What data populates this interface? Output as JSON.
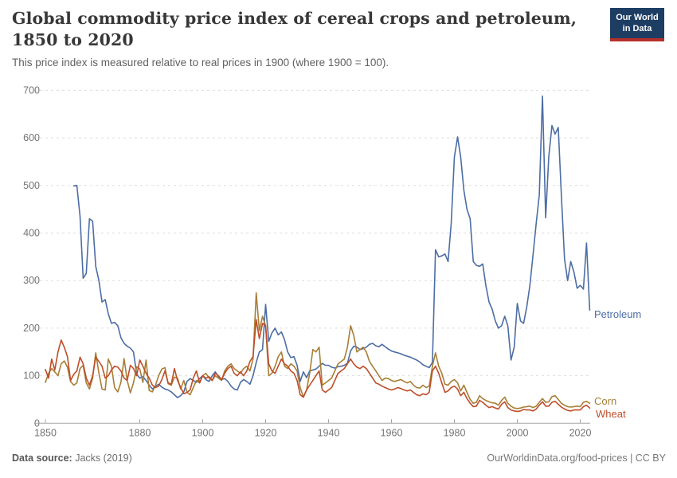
{
  "header": {
    "title": "Global commodity price index of cereal crops and petroleum, 1850 to 2020",
    "subtitle": "This price index is measured relative to real prices in 1900 (where 1900 = 100).",
    "logo": {
      "line1": "Our World",
      "line2": "in Data",
      "bg_color": "#1d3d63",
      "bar_color": "#b5302a"
    }
  },
  "chart_data": {
    "type": "line",
    "title": "Global commodity price index of cereal crops and petroleum, 1850 to 2020",
    "xlabel": "",
    "ylabel": "",
    "xlim": [
      1850,
      2023
    ],
    "ylim": [
      0,
      700
    ],
    "yticks": [
      0,
      100,
      200,
      300,
      400,
      500,
      600,
      700
    ],
    "xticks": [
      1850,
      1880,
      1900,
      1920,
      1940,
      1960,
      1980,
      2000,
      2020
    ],
    "grid": "horizontal-dashed",
    "legend_position": "right-of-line-ends",
    "x": [
      1850,
      1851,
      1852,
      1853,
      1854,
      1855,
      1856,
      1857,
      1858,
      1859,
      1860,
      1861,
      1862,
      1863,
      1864,
      1865,
      1866,
      1867,
      1868,
      1869,
      1870,
      1871,
      1872,
      1873,
      1874,
      1875,
      1876,
      1877,
      1878,
      1879,
      1880,
      1881,
      1882,
      1883,
      1884,
      1885,
      1886,
      1887,
      1888,
      1889,
      1890,
      1891,
      1892,
      1893,
      1894,
      1895,
      1896,
      1897,
      1898,
      1899,
      1900,
      1901,
      1902,
      1903,
      1904,
      1905,
      1906,
      1907,
      1908,
      1909,
      1910,
      1911,
      1912,
      1913,
      1914,
      1915,
      1916,
      1917,
      1918,
      1919,
      1920,
      1921,
      1922,
      1923,
      1924,
      1925,
      1926,
      1927,
      1928,
      1929,
      1930,
      1931,
      1932,
      1933,
      1934,
      1935,
      1936,
      1937,
      1938,
      1939,
      1940,
      1941,
      1942,
      1943,
      1944,
      1945,
      1946,
      1947,
      1948,
      1949,
      1950,
      1951,
      1952,
      1953,
      1954,
      1955,
      1956,
      1957,
      1958,
      1959,
      1960,
      1961,
      1962,
      1963,
      1964,
      1965,
      1966,
      1967,
      1968,
      1969,
      1970,
      1971,
      1972,
      1973,
      1974,
      1975,
      1976,
      1977,
      1978,
      1979,
      1980,
      1981,
      1982,
      1983,
      1984,
      1985,
      1986,
      1987,
      1988,
      1989,
      1990,
      1991,
      1992,
      1993,
      1994,
      1995,
      1996,
      1997,
      1998,
      1999,
      2000,
      2001,
      2002,
      2003,
      2004,
      2005,
      2006,
      2007,
      2008,
      2009,
      2010,
      2011,
      2012,
      2013,
      2014,
      2015,
      2016,
      2017,
      2018,
      2019,
      2020,
      2021,
      2022,
      2023
    ],
    "series": [
      {
        "name": "Petroleum",
        "color": "#4C6DA4",
        "values": [
          null,
          null,
          null,
          null,
          null,
          null,
          null,
          null,
          null,
          499,
          500,
          435,
          305,
          315,
          430,
          425,
          330,
          300,
          255,
          260,
          230,
          210,
          212,
          205,
          180,
          168,
          162,
          158,
          150,
          103,
          95,
          98,
          90,
          80,
          72,
          78,
          82,
          76,
          72,
          70,
          66,
          60,
          54,
          58,
          66,
          88,
          94,
          90,
          86,
          94,
          100,
          92,
          88,
          100,
          108,
          98,
          92,
          94,
          88,
          78,
          72,
          70,
          86,
          92,
          88,
          82,
          100,
          128,
          150,
          155,
          250,
          172,
          190,
          200,
          186,
          192,
          176,
          150,
          138,
          140,
          122,
          88,
          108,
          96,
          110,
          112,
          114,
          120,
          126,
          122,
          122,
          118,
          116,
          119,
          120,
          122,
          126,
          152,
          162,
          160,
          155,
          157,
          160,
          166,
          168,
          163,
          161,
          166,
          161,
          156,
          152,
          150,
          148,
          146,
          143,
          141,
          139,
          136,
          133,
          129,
          123,
          120,
          117,
          128,
          365,
          350,
          352,
          356,
          340,
          420,
          560,
          602,
          560,
          490,
          450,
          430,
          340,
          332,
          330,
          335,
          290,
          255,
          240,
          215,
          200,
          205,
          225,
          205,
          133,
          160,
          252,
          215,
          210,
          245,
          290,
          355,
          420,
          480,
          688,
          432,
          560,
          626,
          608,
          622,
          480,
          345,
          300,
          340,
          318,
          284,
          290,
          282,
          379,
          238
        ]
      },
      {
        "name": "Corn",
        "color": "#A87E35",
        "values": [
          86,
          105,
          115,
          108,
          100,
          125,
          131,
          118,
          88,
          80,
          85,
          115,
          122,
          85,
          72,
          95,
          148,
          105,
          72,
          70,
          135,
          120,
          75,
          66,
          86,
          136,
          90,
          64,
          85,
          119,
          114,
          86,
          133,
          69,
          66,
          80,
          100,
          114,
          117,
          83,
          80,
          97,
          95,
          72,
          90,
          65,
          60,
          75,
          90,
          85,
          100,
          105,
          95,
          90,
          100,
          95,
          90,
          110,
          120,
          125,
          115,
          110,
          105,
          115,
          120,
          110,
          135,
          274,
          195,
          225,
          205,
          100,
          105,
          120,
          140,
          150,
          120,
          115,
          125,
          120,
          110,
          75,
          55,
          70,
          105,
          155,
          150,
          160,
          80,
          85,
          90,
          95,
          110,
          125,
          130,
          135,
          160,
          205,
          185,
          150,
          155,
          160,
          150,
          130,
          120,
          110,
          100,
          90,
          95,
          94,
          90,
          88,
          90,
          92,
          88,
          85,
          88,
          80,
          75,
          74,
          80,
          75,
          78,
          120,
          148,
          120,
          105,
          82,
          80,
          88,
          92,
          85,
          68,
          80,
          65,
          50,
          42,
          44,
          58,
          52,
          48,
          45,
          43,
          42,
          38,
          48,
          55,
          42,
          36,
          32,
          31,
          32,
          34,
          35,
          36,
          33,
          36,
          44,
          52,
          44,
          45,
          56,
          58,
          50,
          42,
          38,
          35,
          34,
          35,
          36,
          35,
          44,
          46,
          42
        ]
      },
      {
        "name": "Wheat",
        "color": "#BE4D29",
        "values": [
          113,
          95,
          135,
          112,
          150,
          175,
          160,
          140,
          90,
          103,
          110,
          139,
          125,
          95,
          80,
          100,
          139,
          130,
          120,
          95,
          100,
          112,
          120,
          118,
          110,
          95,
          90,
          122,
          115,
          100,
          133,
          120,
          105,
          95,
          80,
          75,
          78,
          92,
          110,
          85,
          82,
          115,
          90,
          75,
          62,
          65,
          70,
          95,
          110,
          85,
          100,
          95,
          98,
          90,
          105,
          100,
          92,
          105,
          115,
          120,
          105,
          100,
          108,
          100,
          110,
          130,
          140,
          218,
          178,
          210,
          205,
          125,
          110,
          105,
          120,
          135,
          125,
          120,
          110,
          105,
          90,
          60,
          55,
          70,
          80,
          90,
          100,
          110,
          70,
          65,
          70,
          75,
          90,
          105,
          110,
          115,
          125,
          135,
          125,
          118,
          115,
          120,
          115,
          105,
          95,
          85,
          82,
          78,
          75,
          72,
          70,
          72,
          75,
          73,
          70,
          68,
          70,
          65,
          60,
          58,
          62,
          60,
          65,
          110,
          120,
          105,
          85,
          65,
          68,
          75,
          78,
          72,
          58,
          65,
          52,
          42,
          35,
          36,
          48,
          44,
          38,
          33,
          35,
          32,
          30,
          40,
          45,
          33,
          28,
          26,
          25,
          26,
          29,
          28,
          28,
          26,
          30,
          38,
          45,
          36,
          36,
          44,
          46,
          40,
          34,
          30,
          27,
          26,
          28,
          28,
          28,
          35,
          38,
          32
        ]
      }
    ],
    "axis_colors": {
      "tick_label": "#737373",
      "axis_line": "#a5a5a5",
      "gridline": "#dddddd"
    }
  },
  "footer": {
    "datasource_label": "Data source:",
    "datasource_value": "Jacks (2019)",
    "link": "OurWorldinData.org/food-prices | CC BY"
  }
}
